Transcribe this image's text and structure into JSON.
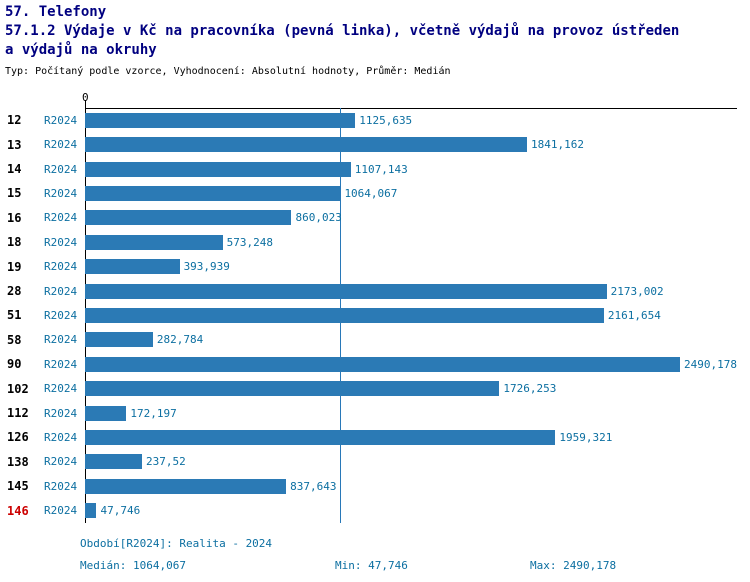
{
  "header": {
    "line1": "57. Telefony",
    "line2": "57.1.2 Výdaje v Kč na pracovníka (pevná linka), včetně výdajů na provoz ústředen",
    "line3": "a výdajů na okruhy",
    "meta": "Typ: Počítaný podle vzorce, Vyhodnocení: Absolutní hodnoty, Průměr: Medián"
  },
  "chart_data": {
    "type": "bar",
    "orientation": "horizontal",
    "title": "57.1.2 Výdaje v Kč na pracovníka (pevná linka), včetně výdajů na provoz ústředen a výdajů na okruhy",
    "series_label": "R2024",
    "axis_zero_label": "0",
    "xlabel": "",
    "ylabel": "",
    "xlim": [
      0,
      2716
    ],
    "grid": false,
    "legend": false,
    "median": 1064.067,
    "median_line": true,
    "rows": [
      {
        "category": "12",
        "value": 1125.635,
        "label": "1125,635",
        "highlight": false
      },
      {
        "category": "13",
        "value": 1841.162,
        "label": "1841,162",
        "highlight": false
      },
      {
        "category": "14",
        "value": 1107.143,
        "label": "1107,143",
        "highlight": false
      },
      {
        "category": "15",
        "value": 1064.067,
        "label": "1064,067",
        "highlight": false
      },
      {
        "category": "16",
        "value": 860.023,
        "label": "860,023",
        "highlight": false
      },
      {
        "category": "18",
        "value": 573.248,
        "label": "573,248",
        "highlight": false
      },
      {
        "category": "19",
        "value": 393.939,
        "label": "393,939",
        "highlight": false
      },
      {
        "category": "28",
        "value": 2173.002,
        "label": "2173,002",
        "highlight": false
      },
      {
        "category": "51",
        "value": 2161.654,
        "label": "2161,654",
        "highlight": false
      },
      {
        "category": "58",
        "value": 282.784,
        "label": "282,784",
        "highlight": false
      },
      {
        "category": "90",
        "value": 2490.178,
        "label": "2490,178",
        "highlight": false
      },
      {
        "category": "102",
        "value": 1726.253,
        "label": "1726,253",
        "highlight": false
      },
      {
        "category": "112",
        "value": 172.197,
        "label": "172,197",
        "highlight": false
      },
      {
        "category": "126",
        "value": 1959.321,
        "label": "1959,321",
        "highlight": false
      },
      {
        "category": "138",
        "value": 237.52,
        "label": "237,52",
        "highlight": false
      },
      {
        "category": "145",
        "value": 837.643,
        "label": "837,643",
        "highlight": false
      },
      {
        "category": "146",
        "value": 47.746,
        "label": "47,746",
        "highlight": true
      }
    ]
  },
  "footer": {
    "period": "Období[R2024]: Realita - 2024",
    "median": "Medián: 1064,067",
    "min": "Min: 47,746",
    "max": "Max: 2490,178"
  },
  "colors": {
    "title_text": "#000080",
    "bar_fill": "#2b7ab5",
    "value_text": "#0c6fa1",
    "highlight_row": "#cc0000",
    "axis": "#000000",
    "median_line": "#2878b8",
    "background": "#ffffff"
  }
}
